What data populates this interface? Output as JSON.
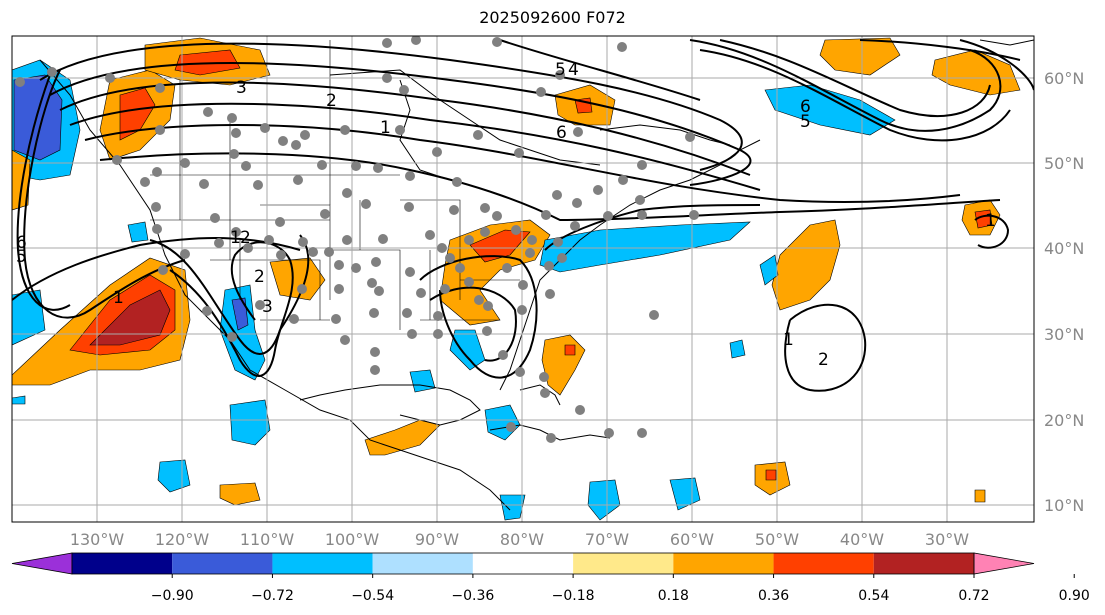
{
  "title": "2025092600 F072",
  "lat_labels": [
    "60°N",
    "50°N",
    "40°N",
    "30°N",
    "20°N",
    "10°N"
  ],
  "lon_labels": [
    "130°W",
    "120°W",
    "110°W",
    "100°W",
    "90°W",
    "80°W",
    "70°W",
    "60°W",
    "50°W",
    "40°W",
    "30°W"
  ],
  "colorbar": {
    "ticks": [
      "−0.90",
      "−0.72",
      "−0.54",
      "−0.36",
      "−0.18",
      "0.18",
      "0.36",
      "0.54",
      "0.72",
      "0.90"
    ],
    "colors": [
      "#9b30d9",
      "#00008b",
      "#3a5bd9",
      "#00bfff",
      "#aee0ff",
      "#ffffff",
      "#ffe98a",
      "#ffa500",
      "#ff4000",
      "#b22222",
      "#ff82b4"
    ]
  },
  "contour_labels": [
    "3",
    "2",
    "1",
    "6",
    "5",
    "4",
    "6",
    "5",
    "1",
    "2",
    "6",
    "5",
    "1",
    "2",
    "3",
    "1",
    "2",
    "1"
  ]
}
